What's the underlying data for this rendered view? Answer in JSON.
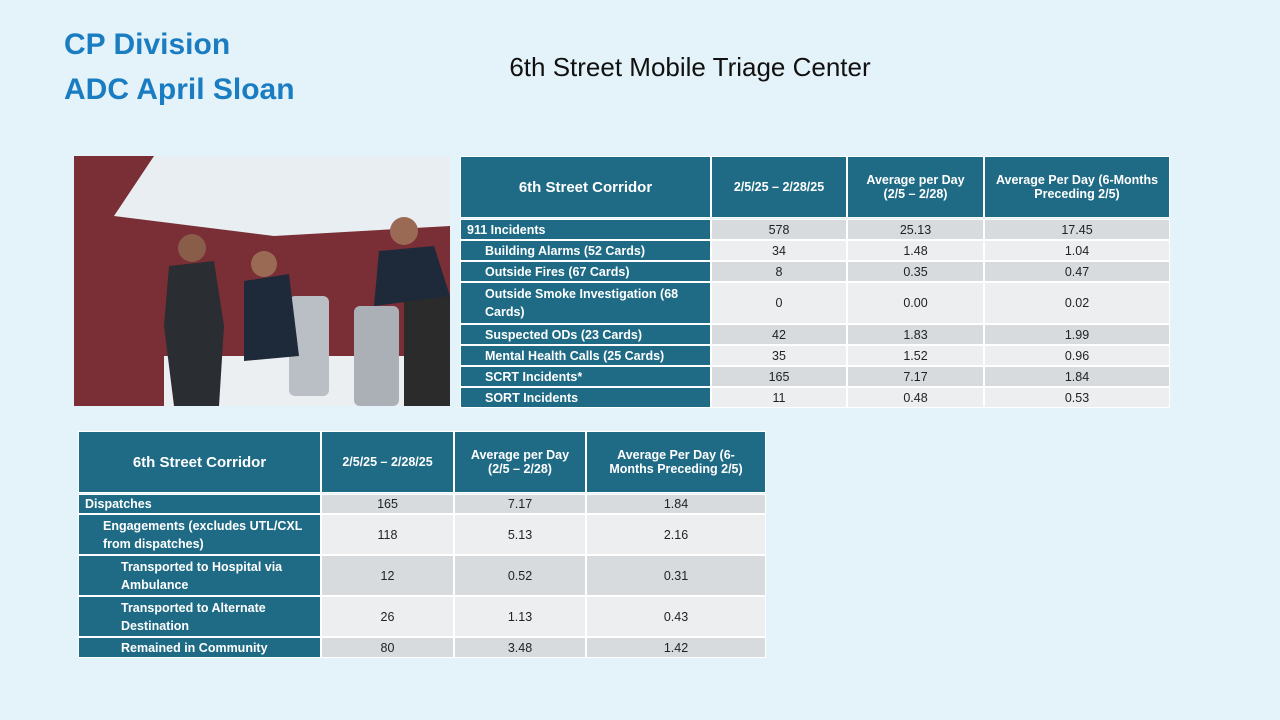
{
  "header": {
    "division": "CP Division",
    "name": "ADC April Sloan",
    "title": "6th Street Mobile Triage Center"
  },
  "tables": [
    {
      "columns": [
        "6th Street Corridor",
        "2/5/25 – 2/28/25",
        "Average per Day (2/5 – 2/28)",
        "Average Per Day (6-Months Preceding 2/5)"
      ],
      "rows": [
        [
          "911 Incidents",
          "578",
          "25.13",
          "17.45"
        ],
        [
          "Building Alarms (52 Cards)",
          "34",
          "1.48",
          "1.04"
        ],
        [
          "Outside Fires (67 Cards)",
          "8",
          "0.35",
          "0.47"
        ],
        [
          "Outside Smoke Investigation (68 Cards)",
          "0",
          "0.00",
          "0.02"
        ],
        [
          "Suspected ODs (23 Cards)",
          "42",
          "1.83",
          "1.99"
        ],
        [
          "Mental Health Calls (25 Cards)",
          "35",
          "1.52",
          "0.96"
        ],
        [
          "SCRT Incidents*",
          "165",
          "7.17",
          "1.84"
        ],
        [
          "SORT Incidents",
          "11",
          "0.48",
          "0.53"
        ]
      ]
    },
    {
      "columns": [
        "6th Street Corridor",
        "2/5/25 – 2/28/25",
        "Average per Day (2/5 – 2/28)",
        "Average Per Day (6-Months Preceding 2/5)"
      ],
      "rows": [
        [
          "Dispatches",
          "165",
          "7.17",
          "1.84"
        ],
        [
          "Engagements (excludes UTL/CXL from dispatches)",
          "118",
          "5.13",
          "2.16"
        ],
        [
          "Transported to Hospital via Ambulance",
          "12",
          "0.52",
          "0.31"
        ],
        [
          "Transported to Alternate Destination",
          "26",
          "1.13",
          "0.43"
        ],
        [
          "Remained in Community",
          "80",
          "3.48",
          "1.42"
        ]
      ]
    }
  ]
}
